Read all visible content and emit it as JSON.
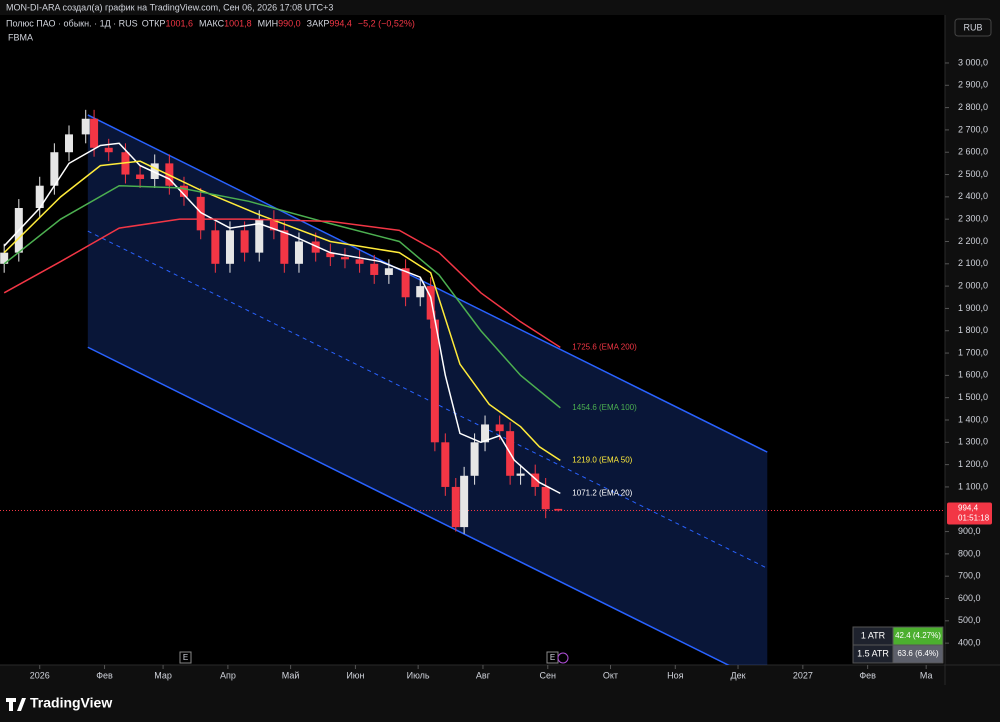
{
  "header": {
    "credit": "MON-DI-ARA создал(а) график на TradingView.com, Сен 06, 2026 17:08 UTC+3",
    "symbol": "Полюс ПАО · обыкн. · 1Д · RUS",
    "open_key": "ОТКР",
    "open_value": "1001,6",
    "high_key": "МАКС",
    "high_value": "1001,8",
    "low_key": "МИН",
    "low_value": "990,0",
    "close_key": "ЗАКР",
    "close_value": "994,4",
    "change": "−5,2 (−0,52%)",
    "indicator": "FBMA",
    "currency": "RUB"
  },
  "price_tag": {
    "price": "994,4",
    "countdown": "01:51:18"
  },
  "atr_table": [
    [
      "1 ATR",
      "42.4 (4.27%)"
    ],
    [
      "1.5 ATR",
      "63.6 (6.4%)"
    ]
  ],
  "logo": "TradingView",
  "chart_data": {
    "type": "candlestick",
    "xlim": [
      -19,
      433
    ],
    "xticks": [
      {
        "value": 0,
        "label": "2026"
      },
      {
        "value": 31,
        "label": "Фев"
      },
      {
        "value": 59,
        "label": "Мар"
      },
      {
        "value": 90,
        "label": "Апр"
      },
      {
        "value": 120,
        "label": "Май"
      },
      {
        "value": 151,
        "label": "Июн"
      },
      {
        "value": 181,
        "label": "Июль"
      },
      {
        "value": 212,
        "label": "Авг"
      },
      {
        "value": 243,
        "label": "Сен"
      },
      {
        "value": 273,
        "label": "Окт"
      },
      {
        "value": 304,
        "label": "Ноя"
      },
      {
        "value": 334,
        "label": "Дек"
      },
      {
        "value": 365,
        "label": "2027"
      },
      {
        "value": 396,
        "label": "Фев"
      },
      {
        "value": 424,
        "label": "Ма"
      }
    ],
    "ylim": [
      302,
      3215
    ],
    "yticks": [
      {
        "value": 400,
        "label": "400,0"
      },
      {
        "value": 500,
        "label": "500,0"
      },
      {
        "value": 600,
        "label": "600,0"
      },
      {
        "value": 700,
        "label": "700,0"
      },
      {
        "value": 800,
        "label": "800,0"
      },
      {
        "value": 900,
        "label": "900,0"
      },
      {
        "value": 1100,
        "label": "1 100,0"
      },
      {
        "value": 1200,
        "label": "1 200,0"
      },
      {
        "value": 1300,
        "label": "1 300,0"
      },
      {
        "value": 1400,
        "label": "1 400,0"
      },
      {
        "value": 1500,
        "label": "1 500,0"
      },
      {
        "value": 1600,
        "label": "1 600,0"
      },
      {
        "value": 1700,
        "label": "1 700,0"
      },
      {
        "value": 1800,
        "label": "1 800,0"
      },
      {
        "value": 1900,
        "label": "1 900,0"
      },
      {
        "value": 2000,
        "label": "2 000,0"
      },
      {
        "value": 2100,
        "label": "2 100,0"
      },
      {
        "value": 2200,
        "label": "2 200,0"
      },
      {
        "value": 2300,
        "label": "2 300,0"
      },
      {
        "value": 2400,
        "label": "2 400,0"
      },
      {
        "value": 2500,
        "label": "2 500,0"
      },
      {
        "value": 2600,
        "label": "2 600,0"
      },
      {
        "value": 2700,
        "label": "2 700,0"
      },
      {
        "value": 2800,
        "label": "2 800,0"
      },
      {
        "value": 2900,
        "label": "2 900,0"
      },
      {
        "value": 3000,
        "label": "3 000,0"
      }
    ],
    "up_color": "#e6e6e6",
    "down_color": "#f23645",
    "candles": {
      "x": [
        -17,
        -10,
        0,
        7,
        14,
        22,
        26,
        33,
        41,
        48,
        55,
        62,
        69,
        77,
        84,
        91,
        98,
        105,
        112,
        117,
        124,
        132,
        139,
        146,
        153,
        160,
        167,
        175,
        182,
        187,
        189,
        194,
        199,
        203,
        208,
        213,
        220,
        225,
        230,
        237,
        242,
        248
      ],
      "open": [
        2100,
        2150,
        2350,
        2450,
        2600,
        2680,
        2750,
        2620,
        2600,
        2500,
        2480,
        2550,
        2450,
        2400,
        2250,
        2100,
        2250,
        2150,
        2300,
        2250,
        2100,
        2200,
        2150,
        2130,
        2120,
        2100,
        2050,
        2080,
        1950,
        2000,
        1850,
        1300,
        1100,
        920,
        1150,
        1300,
        1380,
        1350,
        1150,
        1160,
        1100,
        1001.6
      ],
      "high": [
        2190,
        2390,
        2490,
        2640,
        2720,
        2790,
        2790,
        2660,
        2640,
        2540,
        2590,
        2590,
        2490,
        2440,
        2290,
        2290,
        2290,
        2340,
        2340,
        2290,
        2240,
        2240,
        2190,
        2170,
        2160,
        2140,
        2120,
        2120,
        2040,
        2040,
        1890,
        1340,
        1140,
        1190,
        1340,
        1420,
        1420,
        1390,
        1200,
        1200,
        1140,
        1001.8
      ],
      "low": [
        2060,
        2110,
        2310,
        2410,
        2560,
        2640,
        2580,
        2560,
        2460,
        2440,
        2440,
        2410,
        2360,
        2210,
        2060,
        2060,
        2110,
        2110,
        2210,
        2060,
        2060,
        2110,
        2090,
        2080,
        2060,
        2010,
        2010,
        1910,
        1910,
        1810,
        1260,
        1060,
        900,
        890,
        1110,
        1260,
        1310,
        1110,
        1110,
        1060,
        960,
        990
      ],
      "close": [
        2150,
        2350,
        2450,
        2600,
        2680,
        2750,
        2620,
        2600,
        2500,
        2480,
        2550,
        2450,
        2400,
        2250,
        2100,
        2250,
        2150,
        2300,
        2250,
        2100,
        2200,
        2150,
        2130,
        2120,
        2100,
        2050,
        2080,
        1950,
        2000,
        1850,
        1300,
        1100,
        920,
        1150,
        1300,
        1380,
        1350,
        1150,
        1160,
        1100,
        1000,
        994.4
      ]
    },
    "last_price": 994.4,
    "series": [
      {
        "name": "EMA 20",
        "color": "#ffffff",
        "end_label": "1071.2 (EMA 20)",
        "x": [
          -17,
          0,
          14,
          29,
          38,
          48,
          62,
          77,
          91,
          105,
          120,
          139,
          163,
          182,
          187,
          194,
          201,
          211,
          220,
          227,
          239,
          249
        ],
        "values": [
          2180,
          2350,
          2550,
          2630,
          2640,
          2540,
          2480,
          2330,
          2260,
          2280,
          2230,
          2150,
          2110,
          2040,
          1950,
          1600,
          1340,
          1300,
          1330,
          1220,
          1120,
          1071.2
        ]
      },
      {
        "name": "EMA 50",
        "color": "#ffeb3b",
        "end_label": "1219.0 (EMA 50)",
        "x": [
          -17,
          10,
          29,
          48,
          77,
          105,
          139,
          172,
          187,
          201,
          215,
          230,
          239,
          249
        ],
        "values": [
          2150,
          2400,
          2540,
          2560,
          2430,
          2320,
          2200,
          2150,
          2060,
          1650,
          1470,
          1370,
          1280,
          1219
        ]
      },
      {
        "name": "EMA 100",
        "color": "#4caf50",
        "end_label": "1454.6 (EMA 100)",
        "x": [
          -17,
          10,
          38,
          67,
          100,
          139,
          172,
          191,
          211,
          230,
          249
        ],
        "values": [
          2100,
          2300,
          2450,
          2440,
          2380,
          2280,
          2200,
          2050,
          1800,
          1600,
          1454.6
        ]
      },
      {
        "name": "EMA 200",
        "color": "#f23645",
        "end_label": "1725.6 (EMA 200)",
        "x": [
          -17,
          10,
          38,
          67,
          100,
          139,
          172,
          191,
          211,
          230,
          249
        ],
        "values": [
          1970,
          2110,
          2260,
          2300,
          2300,
          2290,
          2250,
          2150,
          1970,
          1840,
          1725.6
        ]
      }
    ],
    "channel": {
      "color": "#2962ff",
      "x": [
        23,
        348
      ],
      "upper": [
        2767,
        1256
      ],
      "lower": [
        1726,
        215
      ]
    }
  }
}
